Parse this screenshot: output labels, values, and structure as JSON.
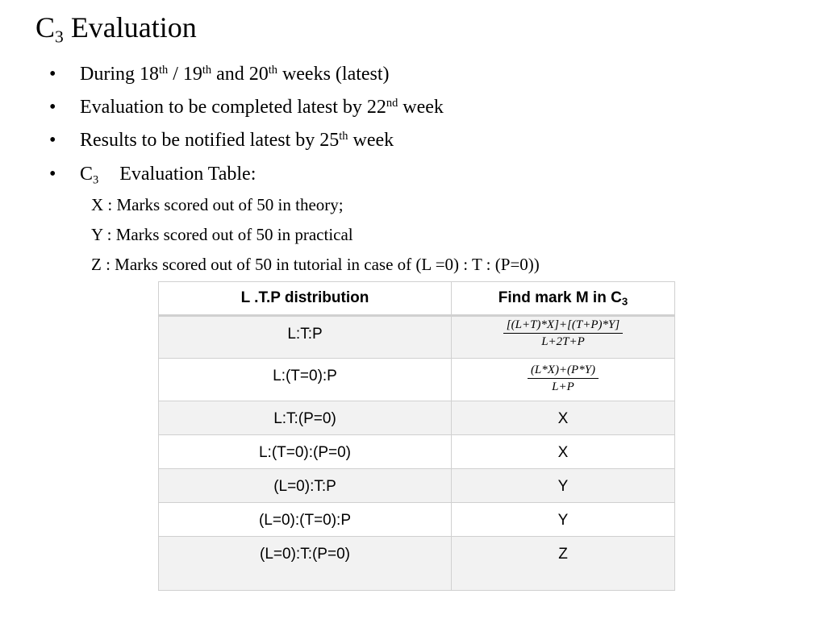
{
  "title": {
    "main": "C",
    "sub": "3",
    "rest": " Evaluation"
  },
  "bullets": {
    "b1": {
      "dot": "•",
      "t1": "During 18",
      "s1": "th",
      "t2": " / 19",
      "s2": "th",
      "t3": " and 20",
      "s3": "th",
      "t4": " weeks (latest)"
    },
    "b2": {
      "dot": "•",
      "t1": "Evaluation to be completed latest by 22",
      "s1": "nd",
      "t2": " week"
    },
    "b3": {
      "dot": "•",
      "t1": "Results to be notified latest by 25",
      "s1": "th",
      "t2": " week"
    },
    "b4": {
      "dot": "•",
      "t1": "C",
      "sub": "3",
      "t2": "Evaluation  Table:"
    }
  },
  "definitions": {
    "x": "X : Marks scored out of 50 in theory;",
    "y": "Y : Marks scored out of 50 in practical",
    "z": "Z : Marks scored out of 50 in tutorial in case of (L =0) : T : (P=0))"
  },
  "table": {
    "headers": {
      "col1": "L .T.P distribution",
      "col2_main": "Find mark M in C",
      "col2_sub": "3"
    },
    "rows": [
      {
        "dist": "L:T:P",
        "num": "[(L+T)*X]+[(T+P)*Y]",
        "den": "L+2T+P"
      },
      {
        "dist": "L:(T=0):P",
        "num": "(L*X)+(P*Y)",
        "den": "L+P"
      },
      {
        "dist": "L:T:(P=0)",
        "mark": "X"
      },
      {
        "dist": "L:(T=0):(P=0)",
        "mark": "X"
      },
      {
        "dist": "(L=0):T:P",
        "mark": "Y"
      },
      {
        "dist": "(L=0):(T=0):P",
        "mark": "Y"
      },
      {
        "dist": "(L=0):T:(P=0)",
        "mark": "Z"
      }
    ]
  }
}
